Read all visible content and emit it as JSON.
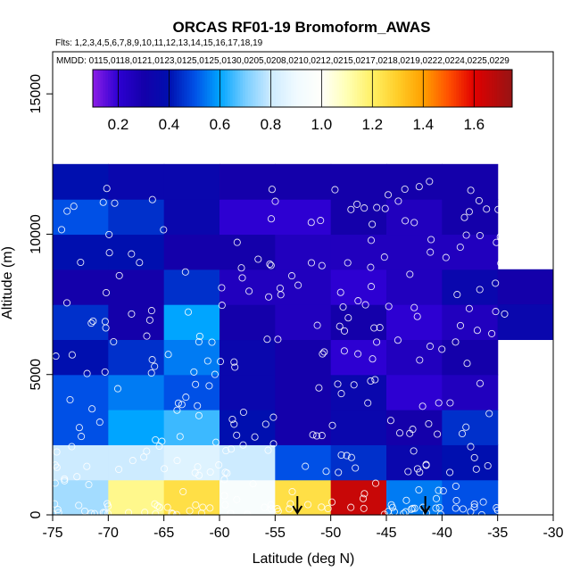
{
  "chart_data": {
    "type": "heatmap",
    "title": "ORCAS RF01-19 Bromoform_AWAS",
    "flights_label": "Flts: 1,2,3,4,5,6,7,8,9,10,11,12,13,14,15,16,17,18,19",
    "dates_label": "MMDD: 0115,0118,0121,0123,0125,0125,0130,0205,0208,0210,0212,0215,0217,0218,0219,0222,0224,0225,0229",
    "xlabel": "Latitude (deg N)",
    "ylabel": "Altitude (m)",
    "xlim": [
      -75,
      -30
    ],
    "ylim": [
      0,
      16500
    ],
    "xticks": [
      -75,
      -70,
      -65,
      -60,
      -55,
      -50,
      -45,
      -40,
      -35,
      -30
    ],
    "xtick_labels": [
      "-75",
      "-70",
      "-65",
      "-60",
      "-55",
      "-50",
      "-45",
      "-40",
      "-35",
      "-30"
    ],
    "yticks": [
      0,
      5000,
      10000,
      15000
    ],
    "ytick_labels": [
      "0",
      "5000",
      "10000",
      "15000"
    ],
    "colorbar": {
      "range": [
        0.1,
        1.75
      ],
      "ticks": [
        0.2,
        0.4,
        0.6,
        0.8,
        1.0,
        1.2,
        1.4,
        1.6
      ],
      "tick_labels": [
        "0.2",
        "0.4",
        "0.6",
        "0.8",
        "1.0",
        "1.2",
        "1.4",
        "1.6"
      ]
    },
    "cell_lat_edges": [
      -75,
      -70,
      -65,
      -60,
      -55,
      -50,
      -45,
      -40,
      -35
    ],
    "cell_alt_edges": [
      0,
      1250,
      2500,
      3750,
      5000,
      6250,
      7500,
      8750,
      10000,
      11250,
      12500
    ],
    "cells": [
      [
        0.75,
        1.15,
        1.25,
        0.95,
        1.25,
        1.65,
        0.55,
        0.5
      ],
      [
        0.8,
        0.8,
        0.85,
        0.8,
        0.5,
        0.45,
        0.35,
        0.4
      ],
      [
        0.5,
        0.6,
        0.65,
        0.4,
        0.3,
        0.35,
        0.3,
        0.45
      ],
      [
        0.5,
        0.55,
        0.5,
        0.35,
        0.3,
        0.35,
        0.2,
        0.25
      ],
      [
        0.4,
        0.45,
        0.55,
        0.35,
        0.3,
        0.2,
        0.25,
        0.3
      ],
      [
        0.45,
        0.3,
        0.6,
        0.3,
        0.25,
        0.3,
        0.2,
        0.25
      ],
      [
        0.3,
        0.3,
        0.45,
        0.25,
        0.25,
        0.2,
        0.25,
        0.35
      ],
      [
        0.4,
        0.4,
        0.3,
        0.3,
        0.25,
        0.25,
        0.25,
        0.25
      ],
      [
        0.5,
        0.45,
        0.35,
        0.2,
        0.2,
        0.3,
        0.25,
        0.3
      ],
      [
        0.4,
        0.35,
        0.35,
        0.3,
        0.3,
        0.3,
        0.3,
        0.3
      ],
      [
        0.3,
        0.3,
        0.3,
        0.3,
        0.3,
        0.3,
        0.3,
        0.3
      ]
    ],
    "extra_cells": [
      {
        "lat": [
          -35,
          -30
        ],
        "alt": [
          7500,
          8750
        ],
        "value": 0.3
      },
      {
        "lat": [
          -35,
          -30
        ],
        "alt": [
          6250,
          7500
        ],
        "value": 0.35
      }
    ],
    "arrows_at_lat": [
      -53,
      -41.5
    ]
  }
}
